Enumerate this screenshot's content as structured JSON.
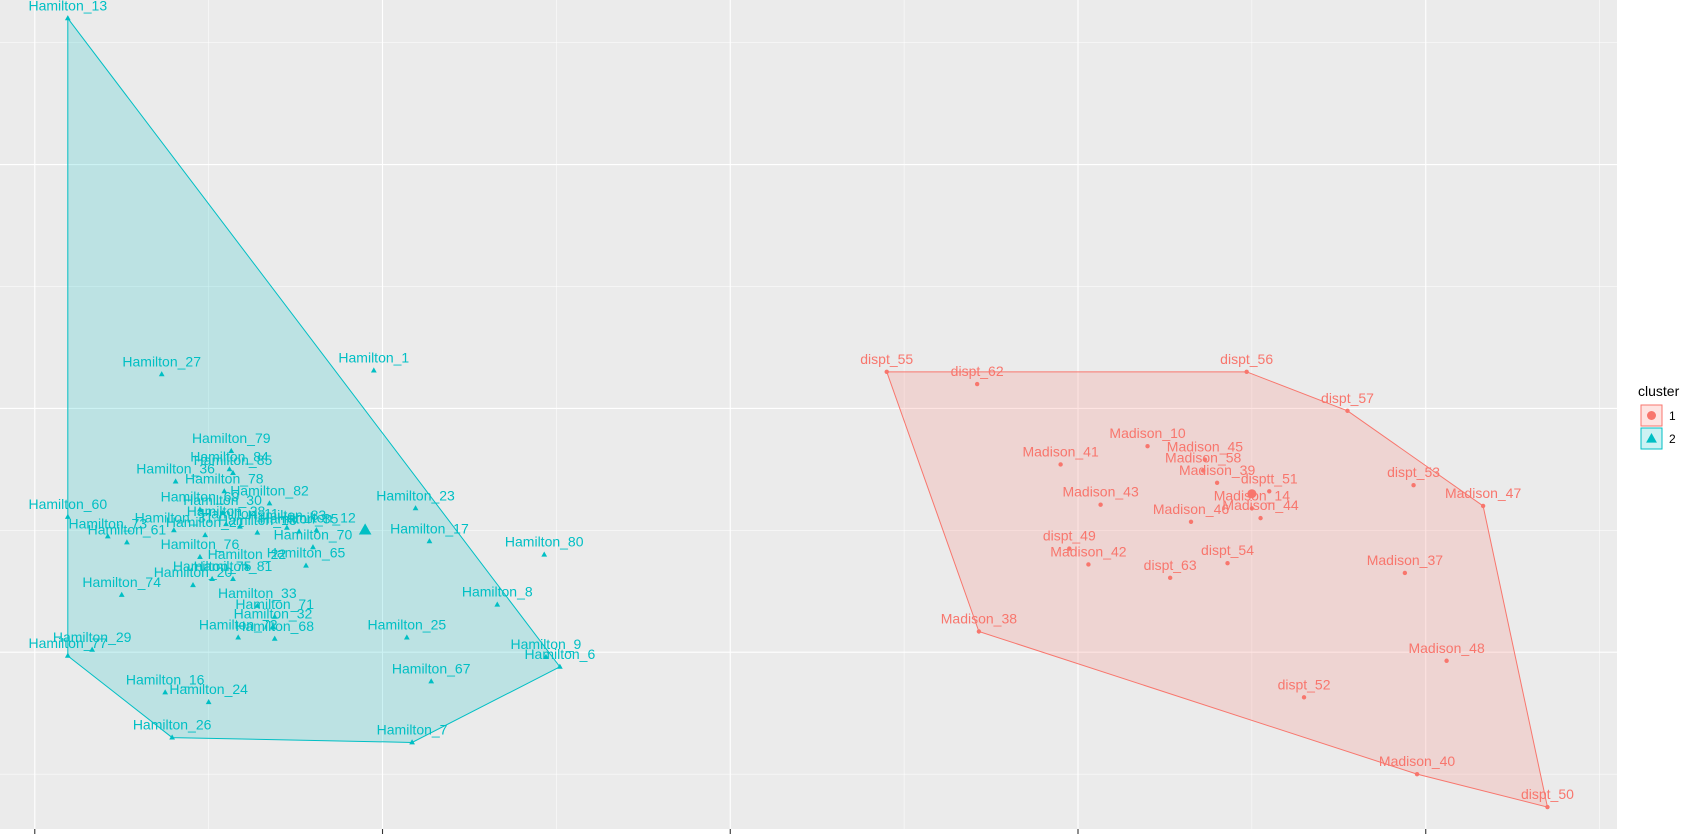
{
  "chart_data": {
    "type": "scatter",
    "title": "",
    "xlabel": "",
    "ylabel": "",
    "xlim": [
      -4.2,
      5.1
    ],
    "ylim": [
      -3.45,
      3.35
    ],
    "grid": true,
    "legend": {
      "title": "cluster",
      "placement": "right",
      "entries": [
        {
          "label": "1",
          "color": "#F8766D",
          "shape": "circle"
        },
        {
          "label": "2",
          "color": "#00BFC4",
          "shape": "triangle"
        }
      ]
    },
    "series": [
      {
        "name": "1",
        "color": "#F8766D",
        "shape": "circle",
        "centroid": [
          3.0,
          -0.7
        ],
        "points": [
          {
            "label": "dispt_55",
            "x": 0.9,
            "y": 0.3
          },
          {
            "label": "dispt_62",
            "x": 1.42,
            "y": 0.2
          },
          {
            "label": "dispt_56",
            "x": 2.97,
            "y": 0.3
          },
          {
            "label": "dispt_57",
            "x": 3.55,
            "y": -0.02
          },
          {
            "label": "Madison_10",
            "x": 2.4,
            "y": -0.31
          },
          {
            "label": "Madison_45",
            "x": 2.73,
            "y": -0.42
          },
          {
            "label": "Madison_58",
            "x": 2.72,
            "y": -0.51
          },
          {
            "label": "Madison_41",
            "x": 1.9,
            "y": -0.46
          },
          {
            "label": "Madison_39",
            "x": 2.8,
            "y": -0.61
          },
          {
            "label": "disptt_51",
            "x": 3.1,
            "y": -0.68
          },
          {
            "label": "dispt_53",
            "x": 3.93,
            "y": -0.63
          },
          {
            "label": "Madison_43",
            "x": 2.13,
            "y": -0.79
          },
          {
            "label": "Madison_14",
            "x": 3.0,
            "y": -0.82
          },
          {
            "label": "Madison_47",
            "x": 4.33,
            "y": -0.8
          },
          {
            "label": "Madison_46",
            "x": 2.65,
            "y": -0.93
          },
          {
            "label": "Madison_44",
            "x": 3.05,
            "y": -0.9
          },
          {
            "label": "dispt_49",
            "x": 1.95,
            "y": -1.15
          },
          {
            "label": "Madison_42",
            "x": 2.06,
            "y": -1.28
          },
          {
            "label": "dispt_54",
            "x": 2.86,
            "y": -1.27
          },
          {
            "label": "dispt_63",
            "x": 2.53,
            "y": -1.39
          },
          {
            "label": "Madison_37",
            "x": 3.88,
            "y": -1.35
          },
          {
            "label": "Madison_38",
            "x": 1.43,
            "y": -1.83
          },
          {
            "label": "Madison_48",
            "x": 4.12,
            "y": -2.07
          },
          {
            "label": "dispt_52",
            "x": 3.3,
            "y": -2.37
          },
          {
            "label": "Madison_40",
            "x": 3.95,
            "y": -3.0
          },
          {
            "label": "dispt_50",
            "x": 4.7,
            "y": -3.27
          }
        ]
      },
      {
        "name": "2",
        "color": "#00BFC4",
        "shape": "triangle",
        "centroid": [
          -2.1,
          -1.0
        ],
        "points": [
          {
            "label": "Hamilton_13",
            "x": -3.81,
            "y": 3.2
          },
          {
            "label": "Hamilton_1",
            "x": -2.05,
            "y": 0.31
          },
          {
            "label": "Hamilton_27",
            "x": -3.27,
            "y": 0.28
          },
          {
            "label": "Hamilton_79",
            "x": -2.87,
            "y": -0.35
          },
          {
            "label": "Hamilton_84",
            "x": -2.88,
            "y": -0.5
          },
          {
            "label": "Hamilton_85",
            "x": -2.86,
            "y": -0.53
          },
          {
            "label": "Hamilton_36",
            "x": -3.19,
            "y": -0.6
          },
          {
            "label": "Hamilton_78",
            "x": -2.91,
            "y": -0.68
          },
          {
            "label": "Hamilton_82",
            "x": -2.65,
            "y": -0.78
          },
          {
            "label": "Hamilton_23",
            "x": -1.81,
            "y": -0.82
          },
          {
            "label": "Hamilton_60",
            "x": -3.81,
            "y": -0.89
          },
          {
            "label": "Hamilton_69",
            "x": -3.05,
            "y": -0.83
          },
          {
            "label": "Hamilton_30",
            "x": -2.92,
            "y": -0.86
          },
          {
            "label": "Hamilton_28",
            "x": -2.9,
            "y": -0.95
          },
          {
            "label": "Hamilton_31",
            "x": -3.2,
            "y": -1.0
          },
          {
            "label": "Hamilton_73",
            "x": -3.58,
            "y": -1.05
          },
          {
            "label": "Hamilton_61",
            "x": -3.47,
            "y": -1.1
          },
          {
            "label": "Hamilton_21",
            "x": -3.02,
            "y": -1.04
          },
          {
            "label": "Hamilton_11",
            "x": -2.82,
            "y": -0.97
          },
          {
            "label": "Hamilton_18",
            "x": -2.72,
            "y": -1.02
          },
          {
            "label": "Hamilton_83",
            "x": -2.55,
            "y": -0.98
          },
          {
            "label": "Hamilton_35",
            "x": -2.48,
            "y": -1.01
          },
          {
            "label": "Hamilton_12",
            "x": -2.38,
            "y": -1.0
          },
          {
            "label": "Hamilton_70",
            "x": -2.4,
            "y": -1.14
          },
          {
            "label": "Hamilton_17",
            "x": -1.73,
            "y": -1.09
          },
          {
            "label": "Hamilton_80",
            "x": -1.07,
            "y": -1.2
          },
          {
            "label": "Hamilton_76",
            "x": -3.05,
            "y": -1.22
          },
          {
            "label": "Hamilton_65",
            "x": -2.44,
            "y": -1.29
          },
          {
            "label": "Hamilton_22",
            "x": -2.78,
            "y": -1.3
          },
          {
            "label": "Hamilton_75",
            "x": -2.98,
            "y": -1.4
          },
          {
            "label": "Hamilton_81",
            "x": -2.86,
            "y": -1.4
          },
          {
            "label": "Hamilton_20",
            "x": -3.09,
            "y": -1.45
          },
          {
            "label": "Hamilton_74",
            "x": -3.5,
            "y": -1.53
          },
          {
            "label": "Hamilton_8",
            "x": -1.34,
            "y": -1.61
          },
          {
            "label": "Hamilton_33",
            "x": -2.72,
            "y": -1.62
          },
          {
            "label": "Hamilton_71",
            "x": -2.62,
            "y": -1.71
          },
          {
            "label": "Hamilton_32",
            "x": -2.63,
            "y": -1.79
          },
          {
            "label": "Hamilton_72",
            "x": -2.83,
            "y": -1.88
          },
          {
            "label": "Hamilton_68",
            "x": -2.62,
            "y": -1.89
          },
          {
            "label": "Hamilton_25",
            "x": -1.86,
            "y": -1.88
          },
          {
            "label": "Hamilton_77",
            "x": -3.81,
            "y": -2.03
          },
          {
            "label": "Hamilton_29",
            "x": -3.67,
            "y": -1.98
          },
          {
            "label": "Hamilton_9",
            "x": -1.06,
            "y": -2.04
          },
          {
            "label": "Hamilton_6",
            "x": -0.98,
            "y": -2.12
          },
          {
            "label": "Hamilton_67",
            "x": -1.72,
            "y": -2.24
          },
          {
            "label": "Hamilton_16",
            "x": -3.25,
            "y": -2.33
          },
          {
            "label": "Hamilton_24",
            "x": -3.0,
            "y": -2.41
          },
          {
            "label": "Hamilton_26",
            "x": -3.21,
            "y": -2.7
          },
          {
            "label": "Hamilton_7",
            "x": -1.83,
            "y": -2.74
          }
        ]
      }
    ],
    "hull_1": [
      "dispt_55",
      "dispt_56",
      "dispt_57",
      "Madison_47",
      "dispt_50",
      "Madison_40",
      "Madison_38"
    ],
    "hull_2": [
      "Hamilton_13",
      "Hamilton_6",
      "Hamilton_7",
      "Hamilton_26",
      "Hamilton_77"
    ]
  }
}
